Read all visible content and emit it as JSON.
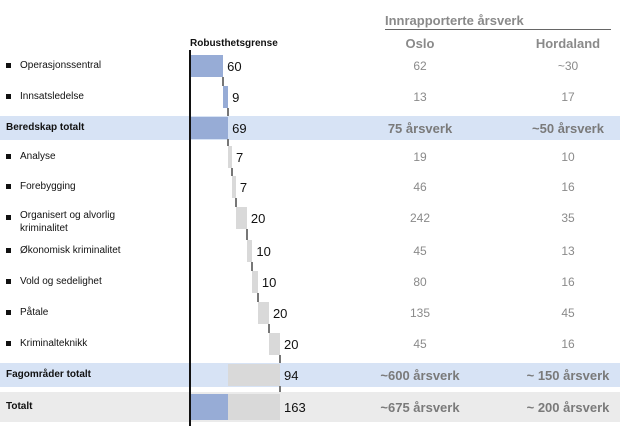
{
  "header": {
    "group_title": "Innrapporterte årsverk",
    "axis_label": "Robusthetsgrense",
    "col_oslo": "Oslo",
    "col_hordaland": "Hordaland"
  },
  "colors": {
    "blue_bar": "#97acd6",
    "grey_bar": "#d9d9d9",
    "blue_band": "#d7e3f5",
    "grey_band": "#ebebeb"
  },
  "chart_data": {
    "type": "bar",
    "subtype": "waterfall",
    "rows": [
      {
        "label": "Operasjonssentral",
        "value": 60,
        "start": 0,
        "kind": "item",
        "color": "blue",
        "oslo": "62",
        "hordaland": "~30"
      },
      {
        "label": "Innsatsledelse",
        "value": 9,
        "start": 60,
        "kind": "item",
        "color": "blue",
        "oslo": "13",
        "hordaland": "17"
      },
      {
        "label": "Beredskap totalt",
        "value": 69,
        "start": 0,
        "kind": "total",
        "color": "blue",
        "oslo": "75 årsverk",
        "hordaland": "~50 årsverk"
      },
      {
        "label": "Analyse",
        "value": 7,
        "start": 69,
        "kind": "item",
        "color": "grey",
        "oslo": "19",
        "hordaland": "10"
      },
      {
        "label": "Forebygging",
        "value": 7,
        "start": 76,
        "kind": "item",
        "color": "grey",
        "oslo": "46",
        "hordaland": "16"
      },
      {
        "label": "Organisert og alvorlig kriminalitet",
        "value": 20,
        "start": 83,
        "kind": "item",
        "color": "grey",
        "oslo": "242",
        "hordaland": "35"
      },
      {
        "label": "Økonomisk kriminalitet",
        "value": 10,
        "start": 103,
        "kind": "item",
        "color": "grey",
        "oslo": "45",
        "hordaland": "13"
      },
      {
        "label": "Vold og sedelighet",
        "value": 10,
        "start": 113,
        "kind": "item",
        "color": "grey",
        "oslo": "80",
        "hordaland": "16"
      },
      {
        "label": "Påtale",
        "value": 20,
        "start": 123,
        "kind": "item",
        "color": "grey",
        "oslo": "135",
        "hordaland": "45"
      },
      {
        "label": "Kriminalteknikk",
        "value": 20,
        "start": 143,
        "kind": "item",
        "color": "grey",
        "oslo": "45",
        "hordaland": "16"
      },
      {
        "label": "Fagområder totalt",
        "value": 94,
        "start": 69,
        "kind": "total",
        "color": "grey",
        "oslo": "~600 årsverk",
        "hordaland": "~ 150 årsverk"
      },
      {
        "label": "Totalt",
        "value": 163,
        "start": 0,
        "kind": "grand",
        "segments": [
          69,
          94
        ],
        "oslo": "~675 årsverk",
        "hordaland": "~ 200 årsverk"
      }
    ]
  }
}
